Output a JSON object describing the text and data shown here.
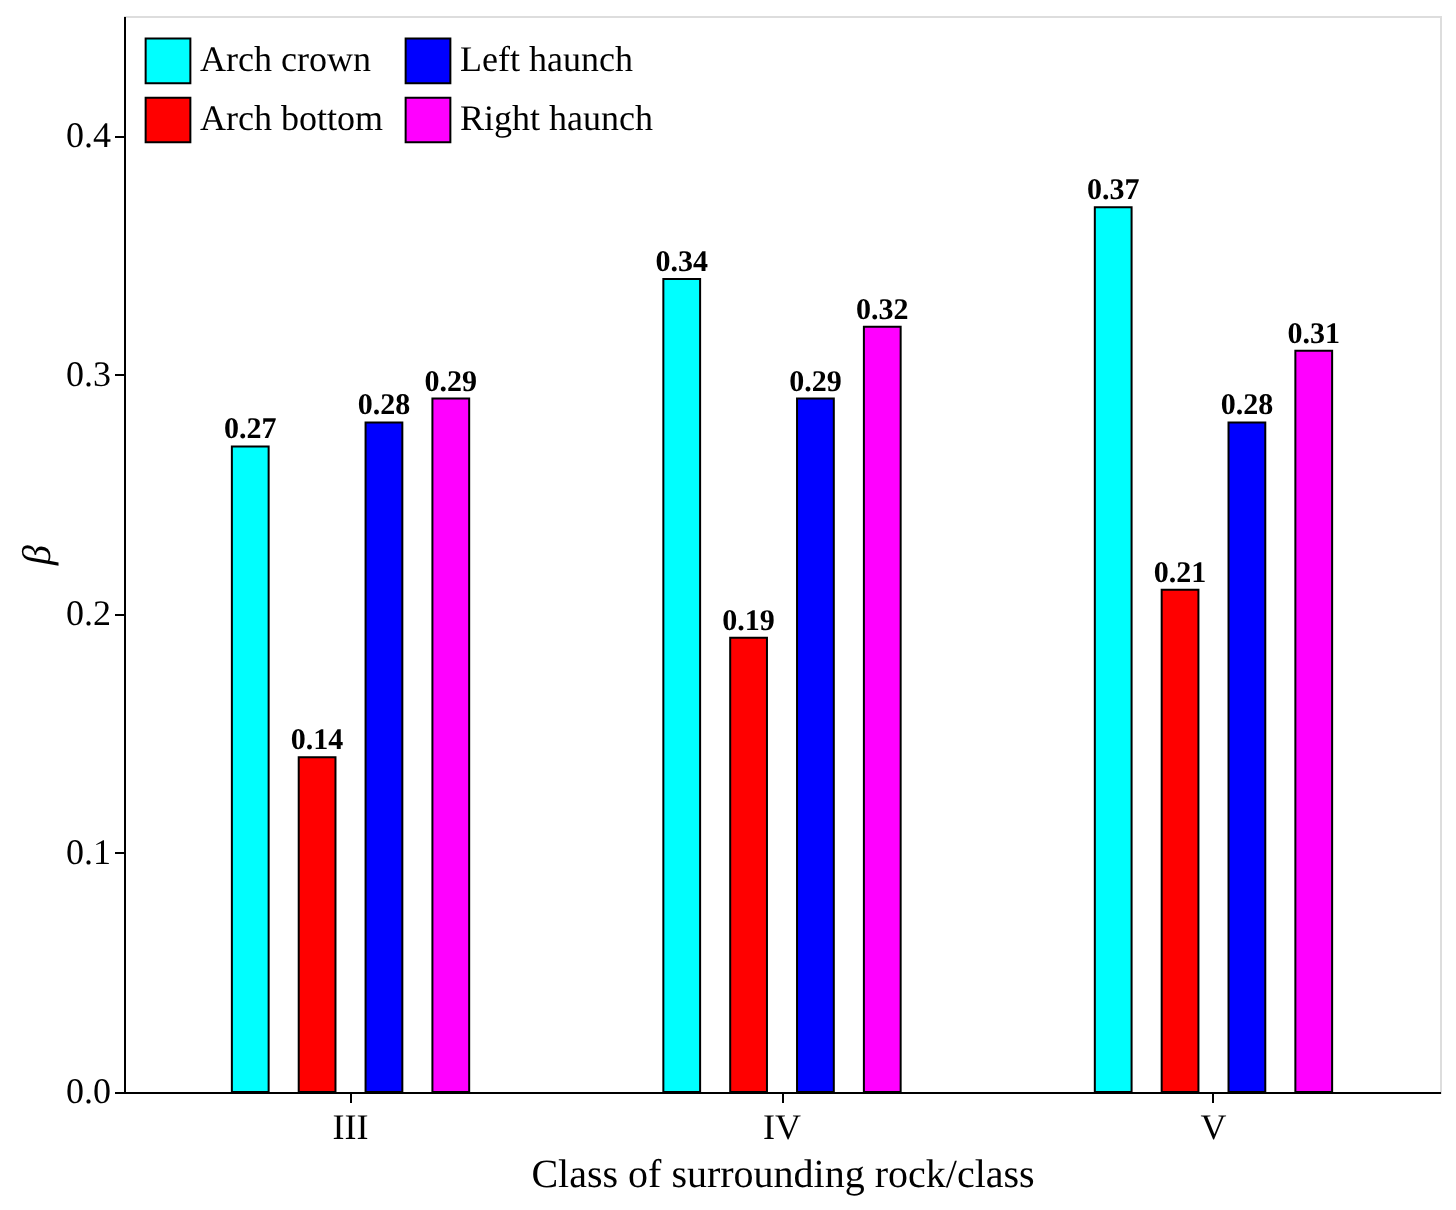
{
  "chart_data": {
    "type": "bar",
    "xlabel": "Class of surrounding rock/class",
    "ylabel": "β",
    "categories": [
      "III",
      "IV",
      "V"
    ],
    "series": [
      {
        "name": "Arch crown",
        "color": "#00ffff",
        "values": [
          0.27,
          0.34,
          0.37
        ]
      },
      {
        "name": "Arch bottom",
        "color": "#ff0000",
        "values": [
          0.14,
          0.19,
          0.21
        ]
      },
      {
        "name": "Left haunch",
        "color": "#0000ff",
        "values": [
          0.28,
          0.29,
          0.28
        ]
      },
      {
        "name": "Right haunch",
        "color": "#ff00ff",
        "values": [
          0.29,
          0.32,
          0.31
        ]
      }
    ],
    "ylim": [
      0,
      0.45
    ],
    "yticks": [
      {
        "value": 0,
        "label": "0.0"
      },
      0.1,
      0.2,
      0.3,
      0.4
    ],
    "data_labels": true,
    "grid": false,
    "legend": "top left"
  }
}
